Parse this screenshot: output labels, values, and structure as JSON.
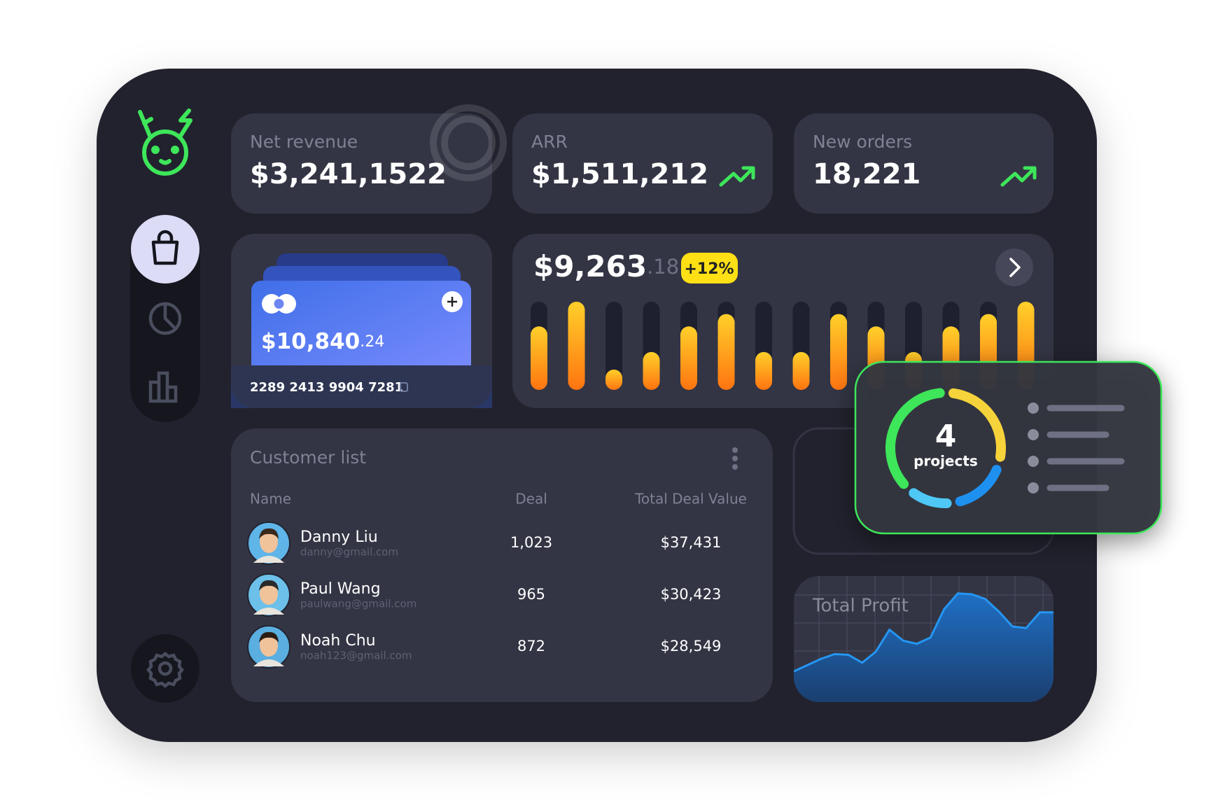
{
  "stats": [
    {
      "label": "Net revenue",
      "value": "$3,241,1522"
    },
    {
      "label": "ARR",
      "value": "$1,511,212"
    },
    {
      "label": "New orders",
      "value": "18,221"
    }
  ],
  "wallet": {
    "balance": "$10,840",
    "cents": ".24",
    "card_number": "2289 2413 9904 7281"
  },
  "revenue": {
    "amount": "$9,263",
    "cents": ".18",
    "change": "+12%",
    "bars": [
      72,
      100,
      23,
      43,
      72,
      86,
      43,
      43,
      86,
      72,
      43,
      72,
      86,
      100
    ]
  },
  "projects": {
    "count": "4",
    "label": "projects",
    "segments": [
      {
        "value": 30,
        "color": "#f7d33b"
      },
      {
        "value": 17,
        "color": "#1e90f0"
      },
      {
        "value": 12,
        "color": "#4fc8f5"
      },
      {
        "value": 41,
        "color": "#3ee65a"
      }
    ]
  },
  "customers": {
    "title": "Customer list",
    "columns": [
      "Name",
      "Deal",
      "Total Deal Value"
    ],
    "rows": [
      {
        "name": "Danny Liu",
        "email": "danny@gmail.com",
        "deal": "1,023",
        "total": "$37,431"
      },
      {
        "name": "Paul Wang",
        "email": "paulwang@gmail.com",
        "deal": "965",
        "total": "$30,423"
      },
      {
        "name": "Noah Chu",
        "email": "noah123@gmail.com",
        "deal": "872",
        "total": "$28,549"
      }
    ]
  },
  "profit": {
    "title": "Total Profit",
    "ylim": [
      0,
      160
    ],
    "values": [
      39,
      47,
      55,
      61,
      60,
      50,
      64,
      92,
      78,
      74,
      82,
      118,
      138,
      137,
      131,
      115,
      96,
      94,
      114,
      114
    ]
  }
}
